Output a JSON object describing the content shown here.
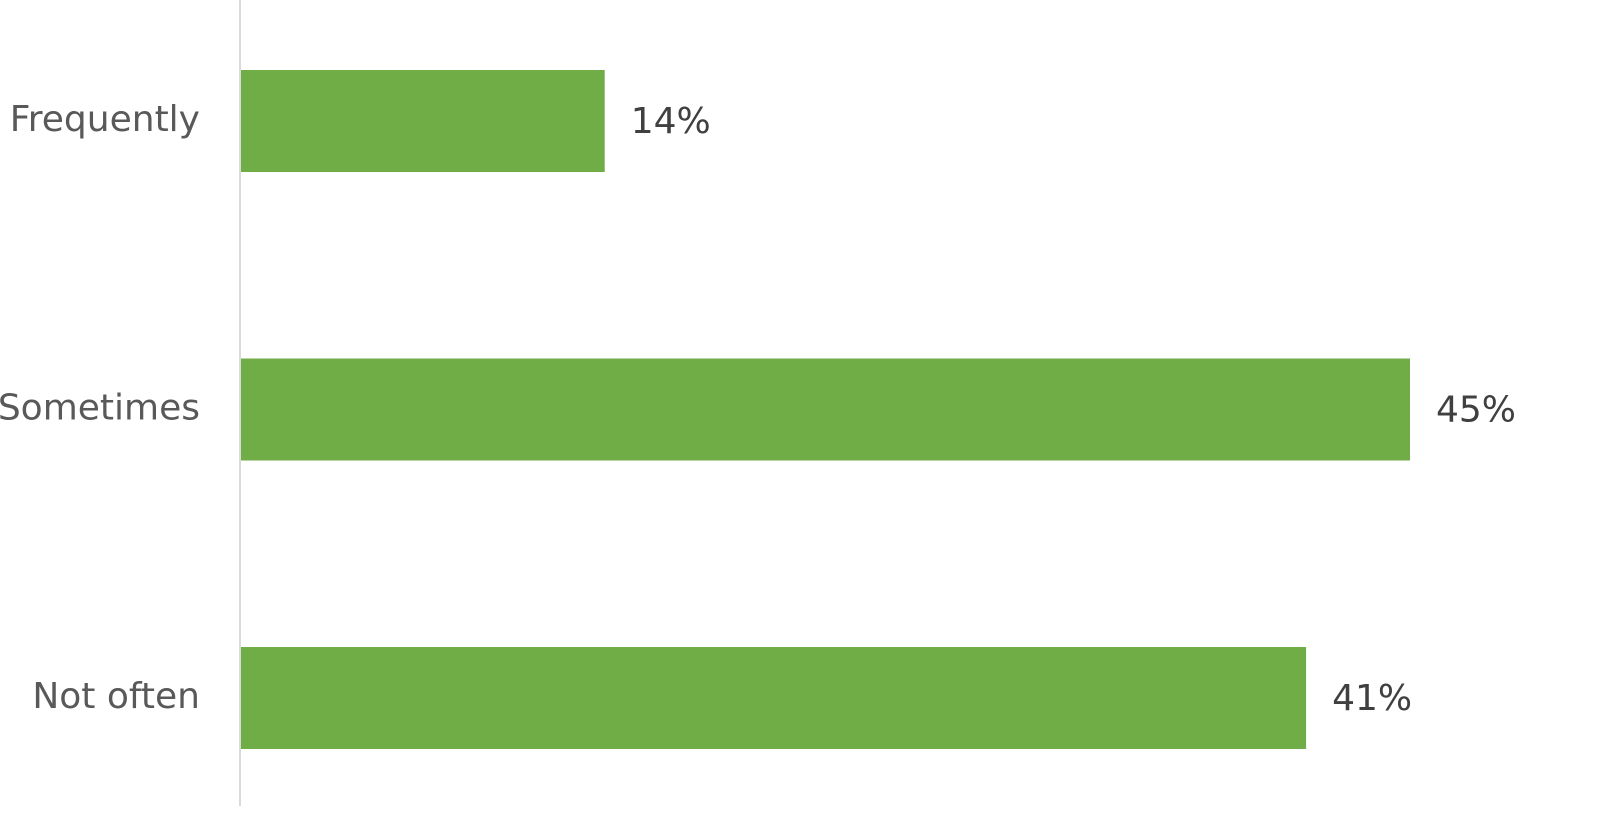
{
  "chart_data": {
    "type": "hbar",
    "categories": [
      "Frequently",
      "Sometimes",
      "Not often"
    ],
    "values": [
      14,
      45,
      41
    ],
    "value_labels": [
      "14%",
      "45%",
      "41%"
    ],
    "color": "#70ad47"
  }
}
